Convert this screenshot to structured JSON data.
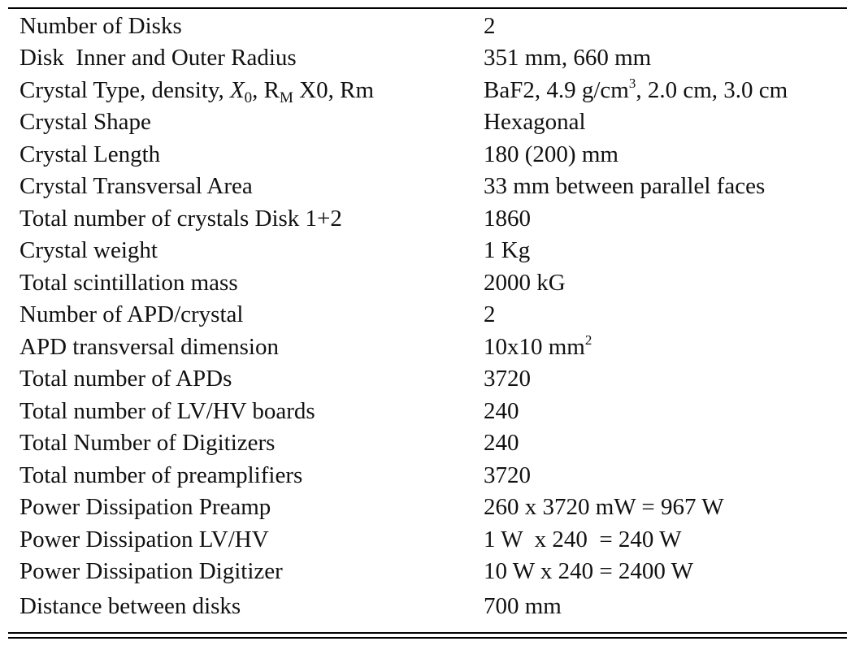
{
  "table": {
    "rows": [
      {
        "param": "Number of Disks",
        "value": "2"
      },
      {
        "param": "Disk  Inner and Outer Radius",
        "value": "351 mm, 660 mm"
      },
      {
        "param_pre": "Crystal Type, density, ",
        "param_x": "X",
        "param_x_sub": "0",
        "param_sep": ", R",
        "param_r_sub": "M",
        "param_post": " X0, Rm",
        "value_pre": "BaF2, 4.9 g/cm",
        "value_sup": "3",
        "value_post": ", 2.0 cm, 3.0 cm"
      },
      {
        "param": "Crystal Shape",
        "value": "Hexagonal"
      },
      {
        "param": "Crystal Length",
        "value": "180 (200) mm"
      },
      {
        "param": "Crystal Transversal Area",
        "value": "33 mm between parallel faces"
      },
      {
        "param": "Total number of crystals Disk 1+2",
        "value": "1860"
      },
      {
        "param": "Crystal weight",
        "value": "1 Kg"
      },
      {
        "param": "Total scintillation mass",
        "value": "2000 kG"
      },
      {
        "param": "Number of APD/crystal",
        "value": "2"
      },
      {
        "param": "APD transversal dimension",
        "value_pre": "10x10 mm",
        "value_sup": "2"
      },
      {
        "param": "Total number of APDs",
        "value": "3720"
      },
      {
        "param": "Total number of LV/HV boards",
        "value": "240"
      },
      {
        "param": "Total Number of Digitizers",
        "value": "240"
      },
      {
        "param": "Total number of preamplifiers",
        "value": "3720"
      },
      {
        "param": "Power Dissipation Preamp",
        "value": "260 x 3720 mW = 967 W"
      },
      {
        "param": "Power Dissipation LV/HV",
        "value": "1 W  x 240  = 240 W"
      },
      {
        "param": "Power Dissipation Digitizer",
        "value": "10 W x 240 = 2400 W"
      },
      {
        "param": "Distance between disks",
        "value": "700 mm"
      }
    ]
  }
}
